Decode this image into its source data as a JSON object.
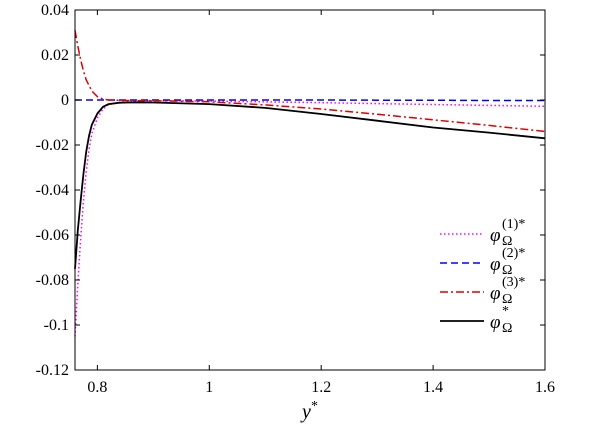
{
  "chart_data": {
    "type": "line",
    "xlabel": "y*",
    "ylabel": "",
    "xlim": [
      0.76,
      1.6
    ],
    "ylim": [
      -0.12,
      0.04
    ],
    "x_ticks": [
      0.8,
      1,
      1.2,
      1.4,
      1.6
    ],
    "x_tick_labels": [
      "0.8",
      "1",
      "1.2",
      "1.4",
      "1.6"
    ],
    "y_ticks": [
      0.04,
      0.02,
      0,
      -0.02,
      -0.04,
      -0.06,
      -0.08,
      -0.1,
      -0.12
    ],
    "y_tick_labels": [
      "0.04",
      "0.02",
      "0",
      "-0.02",
      "-0.04",
      "-0.06",
      "-0.08",
      "-0.1",
      "-0.12"
    ],
    "grid": false,
    "legend_position": "bottom-right",
    "series": [
      {
        "name": "φ_Ω^(1)*",
        "legend_base": "φ",
        "legend_sub": "Ω",
        "legend_sup": "(1)*",
        "color": "#ff00ff",
        "style": "dotted",
        "x": [
          0.76,
          0.765,
          0.77,
          0.775,
          0.78,
          0.785,
          0.79,
          0.8,
          0.81,
          0.82,
          0.84,
          0.87,
          0.9,
          1.0,
          1.1,
          1.2,
          1.3,
          1.4,
          1.5,
          1.6
        ],
        "y": [
          -0.105,
          -0.082,
          -0.062,
          -0.045,
          -0.032,
          -0.022,
          -0.015,
          -0.008,
          -0.004,
          -0.002,
          -0.001,
          -0.0005,
          -0.0003,
          -0.0005,
          -0.0008,
          -0.0012,
          -0.0016,
          -0.002,
          -0.0024,
          -0.0028
        ]
      },
      {
        "name": "φ_Ω^(2)*",
        "legend_base": "φ",
        "legend_sub": "Ω",
        "legend_sup": "(2)*",
        "color": "#0000ff",
        "style": "dashed",
        "x": [
          0.76,
          0.8,
          0.9,
          1.0,
          1.1,
          1.2,
          1.3,
          1.4,
          1.5,
          1.6
        ],
        "y": [
          0.0,
          0.0,
          0.0,
          0.0,
          0.0,
          0.0,
          -0.0001,
          -0.0001,
          -0.0002,
          -0.0002
        ]
      },
      {
        "name": "φ_Ω^(3)*",
        "legend_base": "φ",
        "legend_sub": "Ω",
        "legend_sup": "(3)*",
        "color": "#e00000",
        "style": "dashdot",
        "x": [
          0.76,
          0.765,
          0.77,
          0.775,
          0.78,
          0.785,
          0.79,
          0.8,
          0.81,
          0.82,
          0.85,
          0.9,
          1.0,
          1.1,
          1.2,
          1.3,
          1.4,
          1.5,
          1.6
        ],
        "y": [
          0.031,
          0.024,
          0.018,
          0.013,
          0.009,
          0.0065,
          0.004,
          0.0015,
          0.0004,
          0.0,
          -0.0002,
          -0.0003,
          -0.0008,
          -0.0022,
          -0.004,
          -0.0063,
          -0.0088,
          -0.0113,
          -0.014
        ]
      },
      {
        "name": "φ_Ω*",
        "legend_base": "φ",
        "legend_sub": "Ω",
        "legend_sup": "*",
        "color": "#000000",
        "style": "solid",
        "x": [
          0.76,
          0.765,
          0.77,
          0.775,
          0.78,
          0.785,
          0.79,
          0.8,
          0.81,
          0.82,
          0.84,
          0.87,
          0.9,
          1.0,
          1.1,
          1.2,
          1.3,
          1.4,
          1.5,
          1.6
        ],
        "y": [
          -0.075,
          -0.058,
          -0.045,
          -0.033,
          -0.023,
          -0.016,
          -0.011,
          -0.006,
          -0.003,
          -0.0018,
          -0.0012,
          -0.001,
          -0.0011,
          -0.0018,
          -0.0035,
          -0.0062,
          -0.0092,
          -0.0122,
          -0.0145,
          -0.017
        ]
      }
    ]
  }
}
